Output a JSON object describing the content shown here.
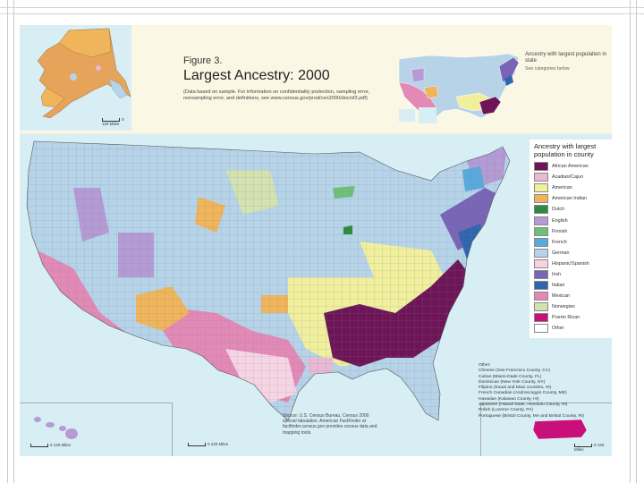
{
  "figure": {
    "number": "Figure 3.",
    "title": "Largest Ancestry: 2000",
    "note": "(Data based on sample. For information on confidentiality protection, sampling error, nonsampling error, and definitions, see www.census.gov/prod/cen2000/doc/sf3.pdf)"
  },
  "inset": {
    "caption": "Ancestry with largest population in state",
    "sub": "See categories below"
  },
  "legend": {
    "title": "Ancestry with largest population in county",
    "items": [
      {
        "label": "African American",
        "color": "#6e1557"
      },
      {
        "label": "Acadian/Cajun",
        "color": "#e9b8d2"
      },
      {
        "label": "American",
        "color": "#f1ef9c"
      },
      {
        "label": "American Indian",
        "color": "#f0b45a"
      },
      {
        "label": "Dutch",
        "color": "#2e8a3e"
      },
      {
        "label": "English",
        "color": "#b59ad4"
      },
      {
        "label": "Finnish",
        "color": "#6fbf78"
      },
      {
        "label": "French",
        "color": "#5aa9dc"
      },
      {
        "label": "German",
        "color": "#b6d3e8"
      },
      {
        "label": "Hispanic/Spanish",
        "color": "#f7d4e2"
      },
      {
        "label": "Irish",
        "color": "#7a64b5"
      },
      {
        "label": "Italian",
        "color": "#2f64ae"
      },
      {
        "label": "Mexican",
        "color": "#e389b6"
      },
      {
        "label": "Norwegian",
        "color": "#d3e2b0"
      },
      {
        "label": "Puerto Rican",
        "color": "#c80f7a"
      },
      {
        "label": "Other",
        "color": "#ffffff"
      }
    ]
  },
  "other_list": [
    "Other:",
    "Chinese (San Francisco County, CA)",
    "Cuban (Miami-Dade County, FL)",
    "Dominican (New York County, NY)",
    "Filipino (Kauai and Maui counties, HI)",
    "French Canadian (Androscoggin County, ME)",
    "Hawaiian (Kalawao County, HI)",
    "Japanese (Hawaii State, Honolulu County, HI)",
    "Polish (Luzerne County, PA)",
    "Portuguese (Bristol County, MA and Bristol County, RI)"
  ],
  "source": "Source: U.S. Census Bureau, Census 2000 special tabulation. American FactFinder at factfinder.census.gov provides census data and mapping tools.",
  "scales": {
    "alaska": "0  120 Miles",
    "hawaii": "0  120 Miles",
    "conus": "0  120 Miles",
    "puerto_rico": "0  120 Miles"
  }
}
